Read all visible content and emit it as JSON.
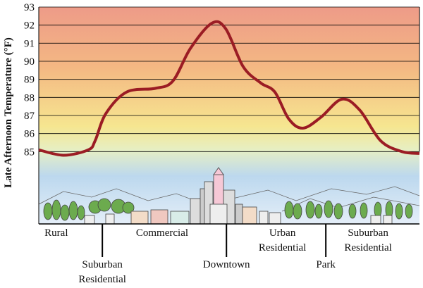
{
  "chart_data": {
    "type": "line",
    "ylabel": "Late Afternoon Temperature (°F)",
    "ylim": [
      81,
      93
    ],
    "yticks": [
      85,
      86,
      87,
      88,
      89,
      90,
      91,
      92,
      93
    ],
    "grid": true,
    "xlim": [
      0,
      100
    ],
    "x": [
      0,
      6.5,
      13,
      14.8,
      17.6,
      23.1,
      30.6,
      35.2,
      39.8,
      45.4,
      49.1,
      53.7,
      58.3,
      62,
      65.7,
      69.4,
      74.1,
      79.6,
      84.3,
      89.8,
      95.4,
      100
    ],
    "series": [
      {
        "color": "#9b1c24",
        "values": [
          85.1,
          84.8,
          85.1,
          85.6,
          87.1,
          88.3,
          88.5,
          88.9,
          90.7,
          92.1,
          91.8,
          89.7,
          88.8,
          88.3,
          86.8,
          86.3,
          86.9,
          87.9,
          87.3,
          85.6,
          85.0,
          84.9
        ]
      }
    ],
    "zones": [
      {
        "lines": [
          "Rural"
        ],
        "x": 4.6,
        "row": 0,
        "pointer": false
      },
      {
        "lines": [
          "Suburban",
          "Residential"
        ],
        "x": 16.7,
        "row": 1,
        "pointer": true
      },
      {
        "lines": [
          "Commercial"
        ],
        "x": 32.4,
        "row": 0,
        "pointer": false
      },
      {
        "lines": [
          "Downtown"
        ],
        "x": 49.3,
        "row": 1,
        "pointer": true
      },
      {
        "lines": [
          "Urban",
          "Residential"
        ],
        "x": 64,
        "row": 0,
        "pointer": false
      },
      {
        "lines": [
          "Park"
        ],
        "x": 75.4,
        "row": 1,
        "pointer": true
      },
      {
        "lines": [
          "Suburban",
          "Residential"
        ],
        "x": 86.5,
        "row": 0,
        "pointer": false
      }
    ]
  }
}
